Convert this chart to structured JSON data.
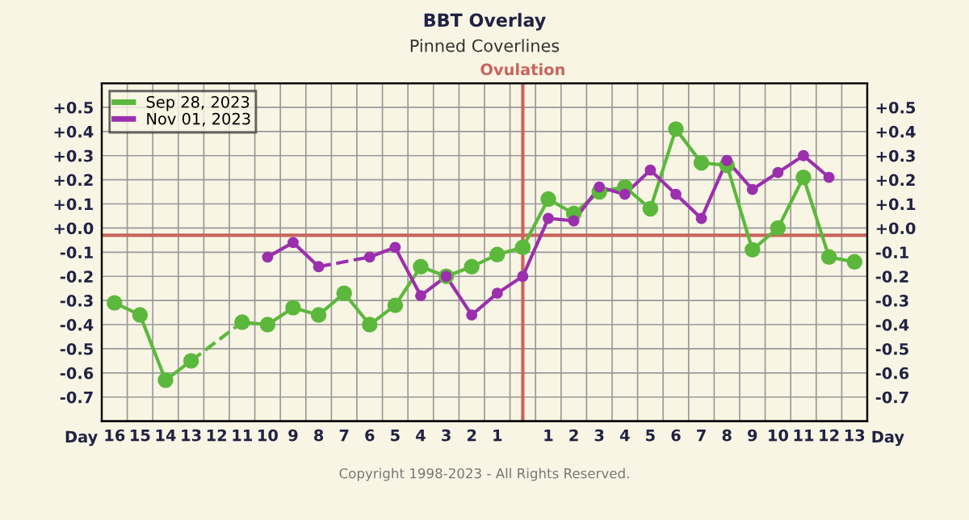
{
  "chart_data": {
    "type": "line",
    "title": "BBT Overlay",
    "subtitle": "Pinned Coverlines",
    "xlabel": "Day",
    "x": [
      -16,
      -15,
      -14,
      -13,
      -12,
      -11,
      -10,
      -9,
      -8,
      -7,
      -6,
      -5,
      -4,
      -3,
      -2,
      -1,
      0,
      1,
      2,
      3,
      4,
      5,
      6,
      7,
      8,
      9,
      10,
      11,
      12,
      13
    ],
    "series": [
      {
        "name": "Sep 28, 2023",
        "color": "#5cb83c",
        "values": [
          -0.31,
          -0.36,
          -0.63,
          -0.55,
          null,
          -0.39,
          -0.4,
          -0.33,
          -0.36,
          -0.27,
          -0.4,
          -0.32,
          -0.16,
          -0.2,
          -0.16,
          -0.11,
          -0.08,
          0.12,
          0.06,
          0.15,
          0.17,
          0.08,
          0.41,
          0.27,
          0.26,
          -0.09,
          0.0,
          0.21,
          -0.12,
          -0.14
        ]
      },
      {
        "name": "Nov 01, 2023",
        "color": "#9b2fae",
        "values": [
          null,
          null,
          null,
          null,
          null,
          null,
          -0.12,
          -0.06,
          -0.16,
          null,
          -0.12,
          -0.08,
          -0.28,
          -0.2,
          -0.36,
          -0.27,
          -0.2,
          0.04,
          0.03,
          0.17,
          0.14,
          0.24,
          0.14,
          0.04,
          0.28,
          0.16,
          0.23,
          0.3,
          0.21,
          null
        ]
      }
    ],
    "xlim": [
      -16.5,
      13.5
    ],
    "xticks": [
      {
        "value": -16,
        "label": "16"
      },
      {
        "value": -15,
        "label": "15"
      },
      {
        "value": -14,
        "label": "14"
      },
      {
        "value": -13,
        "label": "13"
      },
      {
        "value": -12,
        "label": "12"
      },
      {
        "value": -11,
        "label": "11"
      },
      {
        "value": -10,
        "label": "10"
      },
      {
        "value": -9,
        "label": "9"
      },
      {
        "value": -8,
        "label": "8"
      },
      {
        "value": -7,
        "label": "7"
      },
      {
        "value": -6,
        "label": "6"
      },
      {
        "value": -5,
        "label": "5"
      },
      {
        "value": -4,
        "label": "4"
      },
      {
        "value": -3,
        "label": "3"
      },
      {
        "value": -2,
        "label": "2"
      },
      {
        "value": -1,
        "label": "1"
      },
      {
        "value": 0,
        "label": null
      },
      1,
      2,
      3,
      4,
      5,
      6,
      7,
      8,
      9,
      10,
      11,
      12,
      13
    ],
    "ylim": [
      -0.8,
      0.6
    ],
    "yticks": [
      {
        "value": 0.5,
        "label": "+0.5"
      },
      {
        "value": 0.4,
        "label": "+0.4"
      },
      {
        "value": 0.3,
        "label": "+0.3"
      },
      {
        "value": 0.2,
        "label": "+0.2"
      },
      {
        "value": 0.1,
        "label": "+0.1"
      },
      {
        "value": 0.0,
        "label": "+0.0"
      },
      {
        "value": -0.1,
        "label": "-0.1"
      },
      {
        "value": -0.2,
        "label": "-0.2"
      },
      {
        "value": -0.3,
        "label": "-0.3"
      },
      {
        "value": -0.4,
        "label": "-0.4"
      },
      {
        "value": -0.5,
        "label": "-0.5"
      },
      {
        "value": -0.6,
        "label": "-0.6"
      },
      {
        "value": -0.7,
        "label": "-0.7"
      }
    ],
    "y2lim": [
      -0.8,
      0.6
    ],
    "y2ticks": [
      {
        "value": 0.5,
        "label": "+0.5"
      },
      {
        "value": 0.4,
        "label": "+0.4"
      },
      {
        "value": 0.3,
        "label": "+0.3"
      },
      {
        "value": 0.2,
        "label": "+0.2"
      },
      {
        "value": 0.1,
        "label": "+0.1"
      },
      {
        "value": 0.0,
        "label": "+0.0"
      },
      {
        "value": -0.1,
        "label": "-0.1"
      },
      {
        "value": -0.2,
        "label": "-0.2"
      },
      {
        "value": -0.3,
        "label": "-0.3"
      },
      {
        "value": -0.4,
        "label": "-0.4"
      },
      {
        "value": -0.5,
        "label": "-0.5"
      },
      {
        "value": -0.6,
        "label": "-0.6"
      },
      {
        "value": -0.7,
        "label": "-0.7"
      }
    ],
    "ref_lines": [
      {
        "axis": "y",
        "value": -0.03,
        "color": "#c8645c"
      },
      {
        "axis": "x",
        "value": 0,
        "label": "Ovulation",
        "color": "#c8645c"
      }
    ],
    "annotations": [
      "Copyright 1998-2023 - All Rights Reserved."
    ],
    "grid": true,
    "legend": "top left",
    "marker": "circle"
  }
}
